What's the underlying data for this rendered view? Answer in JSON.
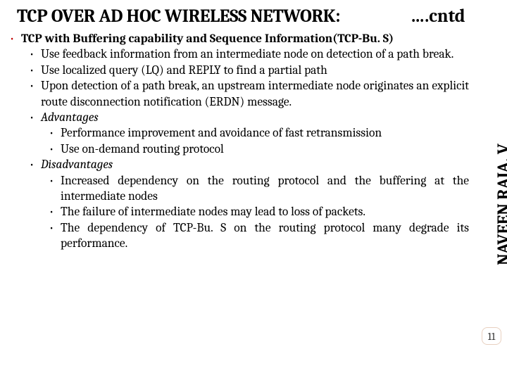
{
  "title": {
    "main": "TCP OVER AD HOC WIRELESS NETWORK:",
    "suffix": "….cntd"
  },
  "author_sidebar": "NAVEEN RAJA. V",
  "page_number": "11",
  "colors": {
    "bullet_red": "#c00000",
    "bullet_black": "#000000",
    "badge_border": "#e8d0c0"
  },
  "bullets": {
    "main_heading": "TCP  with Buffering capability and Sequence Information(TCP-Bu. S)",
    "b1": "Use feedback information from an intermediate node on detection of a path break.",
    "b2": "Use localized query (LQ) and REPLY to find a partial path",
    "b3": "Upon detection of a path break, an upstream intermediate node originates an explicit route disconnection notification (ERDN) message.",
    "adv_label": "Advantages",
    "adv1": "Performance improvement and avoidance of fast retransmission",
    "adv2": "Use on-demand routing protocol",
    "dis_label": "Disadvantages",
    "dis1": "Increased dependency on the routing protocol and the buffering at the intermediate nodes",
    "dis2": "The failure of intermediate nodes may lead to loss of packets.",
    "dis3": "The dependency of TCP-Bu. S on the routing protocol many degrade its performance."
  }
}
